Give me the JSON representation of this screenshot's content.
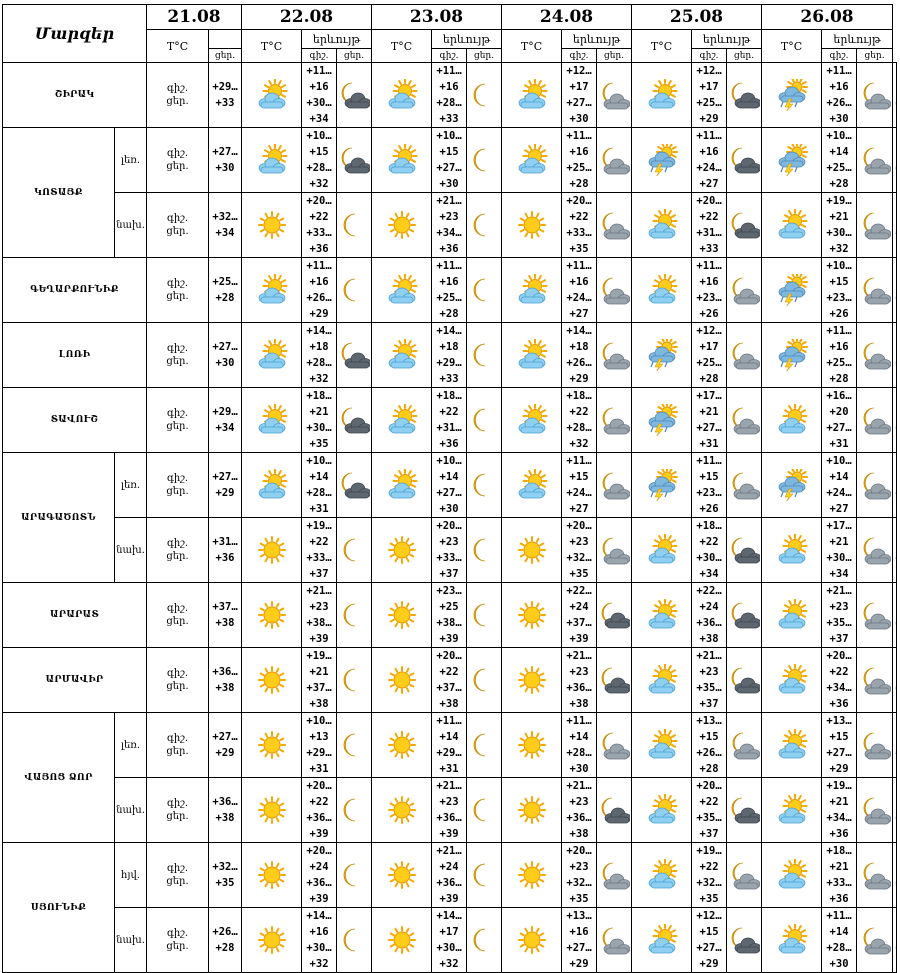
{
  "header": {
    "corner_label": "Մարզեր",
    "dates": [
      "21.08",
      "22.08",
      "23.08",
      "24.08",
      "25.08",
      "26.08"
    ],
    "temp_label": "T°C",
    "phen_label": "երևույթ",
    "day_label": "գիշ.",
    "night_label": "ցեր."
  },
  "icon_legend": {
    "sun": "sun-icon",
    "moon": "moon-icon",
    "sun_cloud": "sun-cloud-icon",
    "moon_cloud": "moon-cloud-icon",
    "moon_darkcloud": "moon-dark-cloud-icon",
    "thunder": "thunderstorm-icon"
  },
  "rows": [
    {
      "region": "ՇԻՐԱԿ",
      "zone": "",
      "r21": "+29…+33",
      "i21": "sun_cloud",
      "d": [
        {
          "n": "+11…+16",
          "d": "+30…+34",
          "i1": "moon_darkcloud",
          "i2": "sun_cloud"
        },
        {
          "n": "+11…+16",
          "d": "+28…+33",
          "i1": "moon",
          "i2": "sun_cloud"
        },
        {
          "n": "+12…+17",
          "d": "+27…+30",
          "i1": "moon_cloud",
          "i2": "sun_cloud"
        },
        {
          "n": "+12…+17",
          "d": "+25…+29",
          "i1": "moon_darkcloud",
          "i2": "thunder"
        },
        {
          "n": "+11…+16",
          "d": "+26…+30",
          "i1": "moon_cloud",
          "i2": "sun_cloud"
        }
      ]
    },
    {
      "region": "ԿՈՏԱՅՔ",
      "zone": "լեռ.",
      "r21": "+27…+30",
      "i21": "sun_cloud",
      "d": [
        {
          "n": "+10…+15",
          "d": "+28…+32",
          "i1": "moon_darkcloud",
          "i2": "sun_cloud"
        },
        {
          "n": "+10…+15",
          "d": "+27…+30",
          "i1": "moon",
          "i2": "sun_cloud"
        },
        {
          "n": "+11…+16",
          "d": "+25…+28",
          "i1": "moon_cloud",
          "i2": "thunder"
        },
        {
          "n": "+11…+16",
          "d": "+24…+27",
          "i1": "moon_darkcloud",
          "i2": "thunder"
        },
        {
          "n": "+10…+14",
          "d": "+25…+28",
          "i1": "moon_cloud",
          "i2": "sun_cloud"
        }
      ]
    },
    {
      "region": "",
      "zone": "նախ.",
      "r21": "+32…+34",
      "i21": "sun",
      "d": [
        {
          "n": "+20…+22",
          "d": "+33…+36",
          "i1": "moon",
          "i2": "sun"
        },
        {
          "n": "+21…+23",
          "d": "+34…+36",
          "i1": "moon",
          "i2": "sun"
        },
        {
          "n": "+20…+22",
          "d": "+33…+35",
          "i1": "moon_cloud",
          "i2": "sun_cloud"
        },
        {
          "n": "+20…+22",
          "d": "+31…+33",
          "i1": "moon_darkcloud",
          "i2": "sun_cloud"
        },
        {
          "n": "+19…+21",
          "d": "+30…+32",
          "i1": "moon_cloud",
          "i2": "sun_cloud"
        }
      ]
    },
    {
      "region": "ԳԵՂԱՐՔՈՒՆԻՔ",
      "zone": "",
      "r21": "+25…+28",
      "i21": "sun_cloud",
      "d": [
        {
          "n": "+11…+16",
          "d": "+26…+29",
          "i1": "moon",
          "i2": "sun_cloud"
        },
        {
          "n": "+11…+16",
          "d": "+25…+28",
          "i1": "moon",
          "i2": "sun_cloud"
        },
        {
          "n": "+11…+16",
          "d": "+24…+27",
          "i1": "moon_cloud",
          "i2": "sun_cloud"
        },
        {
          "n": "+11…+16",
          "d": "+23…+26",
          "i1": "moon_cloud",
          "i2": "thunder"
        },
        {
          "n": "+10…+15",
          "d": "+23…+26",
          "i1": "moon_cloud",
          "i2": "sun_cloud"
        }
      ]
    },
    {
      "region": "ԼՈՌԻ",
      "zone": "",
      "r21": "+27…+30",
      "i21": "sun_cloud",
      "d": [
        {
          "n": "+14…+18",
          "d": "+28…+32",
          "i1": "moon_darkcloud",
          "i2": "sun_cloud"
        },
        {
          "n": "+14…+18",
          "d": "+29…+33",
          "i1": "moon",
          "i2": "sun_cloud"
        },
        {
          "n": "+14…+18",
          "d": "+26…+29",
          "i1": "moon_cloud",
          "i2": "thunder"
        },
        {
          "n": "+12…+17",
          "d": "+25…+28",
          "i1": "moon_cloud",
          "i2": "thunder"
        },
        {
          "n": "+11…+16",
          "d": "+25…+28",
          "i1": "moon_cloud",
          "i2": "sun_cloud"
        }
      ]
    },
    {
      "region": "ՏԱՎՈՒՇ",
      "zone": "",
      "r21": "+29…+34",
      "i21": "sun_cloud",
      "d": [
        {
          "n": "+18…+21",
          "d": "+30…+35",
          "i1": "moon_darkcloud",
          "i2": "sun_cloud"
        },
        {
          "n": "+18…+22",
          "d": "+31…+36",
          "i1": "moon",
          "i2": "sun_cloud"
        },
        {
          "n": "+18…+22",
          "d": "+28…+32",
          "i1": "moon_cloud",
          "i2": "thunder"
        },
        {
          "n": "+17…+21",
          "d": "+27…+31",
          "i1": "moon_cloud",
          "i2": "sun_cloud"
        },
        {
          "n": "+16…+20",
          "d": "+27…+31",
          "i1": "moon_cloud",
          "i2": "sun_cloud"
        }
      ]
    },
    {
      "region": "ԱՐԱԳԱԾՈՏՆ",
      "zone": "լեռ.",
      "r21": "+27…+29",
      "i21": "sun_cloud",
      "d": [
        {
          "n": "+10…+14",
          "d": "+28…+31",
          "i1": "moon_darkcloud",
          "i2": "sun_cloud"
        },
        {
          "n": "+10…+14",
          "d": "+27…+30",
          "i1": "moon",
          "i2": "sun_cloud"
        },
        {
          "n": "+11…+15",
          "d": "+24…+27",
          "i1": "moon_cloud",
          "i2": "thunder"
        },
        {
          "n": "+11…+15",
          "d": "+23…+26",
          "i1": "moon_cloud",
          "i2": "thunder"
        },
        {
          "n": "+10…+14",
          "d": "+24…+27",
          "i1": "moon_cloud",
          "i2": "sun_cloud"
        }
      ]
    },
    {
      "region": "",
      "zone": "նախ.",
      "r21": "+31…+36",
      "i21": "sun",
      "d": [
        {
          "n": "+19…+22",
          "d": "+33…+37",
          "i1": "moon",
          "i2": "sun"
        },
        {
          "n": "+20…+23",
          "d": "+33…+37",
          "i1": "moon",
          "i2": "sun"
        },
        {
          "n": "+20…+23",
          "d": "+32…+35",
          "i1": "moon_cloud",
          "i2": "sun_cloud"
        },
        {
          "n": "+18…+22",
          "d": "+30…+34",
          "i1": "moon_darkcloud",
          "i2": "sun_cloud"
        },
        {
          "n": "+17…+21",
          "d": "+30…+34",
          "i1": "moon_cloud",
          "i2": "sun_cloud"
        }
      ]
    },
    {
      "region": "ԱՐԱՐԱՏ",
      "zone": "",
      "r21": "+37…+38",
      "i21": "sun",
      "d": [
        {
          "n": "+21…+23",
          "d": "+38…+39",
          "i1": "moon",
          "i2": "sun"
        },
        {
          "n": "+23…+25",
          "d": "+38…+39",
          "i1": "moon",
          "i2": "sun"
        },
        {
          "n": "+22…+24",
          "d": "+37…+39",
          "i1": "moon_darkcloud",
          "i2": "sun_cloud"
        },
        {
          "n": "+22…+24",
          "d": "+36…+38",
          "i1": "moon_darkcloud",
          "i2": "sun_cloud"
        },
        {
          "n": "+21…+23",
          "d": "+35…+37",
          "i1": "moon_cloud",
          "i2": "sun_cloud"
        }
      ]
    },
    {
      "region": "ԱՐՄԱՎԻՐ",
      "zone": "",
      "r21": "+36…+38",
      "i21": "sun",
      "d": [
        {
          "n": "+19…+21",
          "d": "+37…+38",
          "i1": "moon",
          "i2": "sun"
        },
        {
          "n": "+20…+22",
          "d": "+37…+38",
          "i1": "moon",
          "i2": "sun"
        },
        {
          "n": "+21…+23",
          "d": "+36…+38",
          "i1": "moon_darkcloud",
          "i2": "sun_cloud"
        },
        {
          "n": "+21…+23",
          "d": "+35…+37",
          "i1": "moon_darkcloud",
          "i2": "sun_cloud"
        },
        {
          "n": "+20…+22",
          "d": "+34…+36",
          "i1": "moon_cloud",
          "i2": "sun_cloud"
        }
      ]
    },
    {
      "region": "ՎԱՅՈՑ ՁՈՐ",
      "zone": "լեռ.",
      "r21": "+27…+29",
      "i21": "sun",
      "d": [
        {
          "n": "+10…+13",
          "d": "+29…+31",
          "i1": "moon",
          "i2": "sun"
        },
        {
          "n": "+11…+14",
          "d": "+29…+31",
          "i1": "moon",
          "i2": "sun"
        },
        {
          "n": "+11…+14",
          "d": "+28…+30",
          "i1": "moon_cloud",
          "i2": "sun_cloud"
        },
        {
          "n": "+13…+15",
          "d": "+26…+28",
          "i1": "moon_cloud",
          "i2": "sun_cloud"
        },
        {
          "n": "+13…+15",
          "d": "+27…+29",
          "i1": "moon_cloud",
          "i2": "sun_cloud"
        }
      ]
    },
    {
      "region": "",
      "zone": "նախ.",
      "r21": "+36…+38",
      "i21": "sun",
      "d": [
        {
          "n": "+20…+22",
          "d": "+36…+39",
          "i1": "moon",
          "i2": "sun"
        },
        {
          "n": "+21…+23",
          "d": "+36…+39",
          "i1": "moon",
          "i2": "sun"
        },
        {
          "n": "+21…+23",
          "d": "+36…+38",
          "i1": "moon_darkcloud",
          "i2": "sun_cloud"
        },
        {
          "n": "+20…+22",
          "d": "+35…+37",
          "i1": "moon_darkcloud",
          "i2": "sun_cloud"
        },
        {
          "n": "+19…+21",
          "d": "+34…+36",
          "i1": "moon_cloud",
          "i2": "sun_cloud"
        }
      ]
    },
    {
      "region": "ՍՅՈՒՆԻՔ",
      "zone": "հյվ.",
      "r21": "+32…+35",
      "i21": "sun",
      "d": [
        {
          "n": "+20…+24",
          "d": "+36…+39",
          "i1": "moon",
          "i2": "sun"
        },
        {
          "n": "+21…+24",
          "d": "+36…+39",
          "i1": "moon",
          "i2": "sun"
        },
        {
          "n": "+20…+23",
          "d": "+32…+35",
          "i1": "moon_cloud",
          "i2": "sun_cloud"
        },
        {
          "n": "+19…+22",
          "d": "+32…+35",
          "i1": "moon_cloud",
          "i2": "sun_cloud"
        },
        {
          "n": "+18…+21",
          "d": "+33…+36",
          "i1": "moon_cloud",
          "i2": "sun_cloud"
        }
      ]
    },
    {
      "region": "",
      "zone": "նախ.",
      "r21": "+26…+28",
      "i21": "sun",
      "d": [
        {
          "n": "+14…+16",
          "d": "+30…+32",
          "i1": "moon",
          "i2": "sun"
        },
        {
          "n": "+14…+17",
          "d": "+30…+32",
          "i1": "moon",
          "i2": "sun"
        },
        {
          "n": "+13…+16",
          "d": "+27…+29",
          "i1": "moon_cloud",
          "i2": "sun_cloud"
        },
        {
          "n": "+12…+15",
          "d": "+27…+29",
          "i1": "moon_darkcloud",
          "i2": "sun_cloud"
        },
        {
          "n": "+11…+14",
          "d": "+28…+30",
          "i1": "moon_cloud",
          "i2": "sun_cloud"
        }
      ]
    }
  ]
}
